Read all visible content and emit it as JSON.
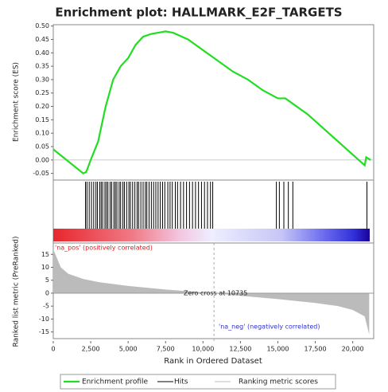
{
  "chart_data": [
    {
      "type": "line",
      "title": "Enrichment plot: HALLMARK_E2F_TARGETS",
      "ylabel": "Enrichment score (ES)",
      "xlim": [
        0,
        21400
      ],
      "ylim": [
        -0.075,
        0.505
      ],
      "yticks": [
        -0.05,
        {
          "value": 0,
          "label": "0.00"
        },
        0.05,
        {
          "value": 0.1,
          "label": "0.10"
        },
        0.15,
        {
          "value": 0.2,
          "label": "0.20"
        },
        0.25,
        {
          "value": 0.3,
          "label": "0.30"
        },
        0.35,
        {
          "value": 0.4,
          "label": "0.40"
        },
        0.45,
        {
          "value": 0.5,
          "label": "0.50"
        }
      ],
      "series": [
        {
          "name": "Enrichment profile",
          "color": "#22dd22",
          "x": [
            0,
            2000,
            2200,
            2500,
            3000,
            3500,
            4000,
            4500,
            5000,
            5500,
            6000,
            6500,
            7000,
            7500,
            8000,
            9000,
            10000,
            11000,
            12000,
            13000,
            14000,
            15000,
            15500,
            16000,
            17000,
            18000,
            19000,
            20000,
            20800,
            20900,
            21200
          ],
          "values": [
            0.04,
            -0.05,
            -0.045,
            0.0,
            0.07,
            0.2,
            0.3,
            0.35,
            0.38,
            0.43,
            0.46,
            0.47,
            0.475,
            0.48,
            0.475,
            0.45,
            0.41,
            0.37,
            0.33,
            0.3,
            0.26,
            0.23,
            0.23,
            0.21,
            0.17,
            0.12,
            0.07,
            0.02,
            -0.02,
            0.01,
            0.0
          ]
        }
      ],
      "hits": {
        "name": "Hits",
        "color": "#000000",
        "x": [
          2150,
          2250,
          2400,
          2550,
          2700,
          2850,
          2950,
          3100,
          3200,
          3300,
          3450,
          3550,
          3650,
          3800,
          3900,
          4050,
          4150,
          4250,
          4400,
          4500,
          4650,
          4750,
          4900,
          5050,
          5150,
          5300,
          5450,
          5600,
          5700,
          5850,
          6000,
          6150,
          6250,
          6400,
          6550,
          6700,
          6850,
          7000,
          7150,
          7300,
          7450,
          7650,
          7800,
          7950,
          8150,
          8300,
          8500,
          8700,
          8900,
          9100,
          9300,
          9500,
          9700,
          9900,
          10100,
          10300,
          10500,
          10650,
          14900,
          15100,
          15400,
          15700,
          16000,
          20950
        ]
      }
    },
    {
      "type": "area",
      "ylabel": "Ranked list metric (PreRanked)",
      "xlabel": "Rank in Ordered Dataset",
      "xlim": [
        0,
        21400
      ],
      "xticks": [
        0,
        {
          "value": 2500,
          "label": "2,500"
        },
        {
          "value": 5000,
          "label": "5,000"
        },
        {
          "value": 7500,
          "label": "7,500"
        },
        {
          "value": 10000,
          "label": "10,000"
        },
        {
          "value": 12500,
          "label": "12,500"
        },
        {
          "value": 15000,
          "label": "15,000"
        },
        {
          "value": 17500,
          "label": "17,500"
        },
        {
          "value": 20000,
          "label": "20,000"
        }
      ],
      "ylim": [
        -18.5,
        19.4
      ],
      "yticks": [
        -15,
        -10,
        -5,
        0,
        5,
        10,
        15
      ],
      "series": [
        {
          "name": "Ranking metric scores",
          "color": "#bbbbbb",
          "x": [
            0,
            500,
            1000,
            2000,
            3000,
            5000,
            7500,
            10000,
            10735,
            12500,
            15000,
            17500,
            19000,
            20000,
            20800,
            21100
          ],
          "values": [
            17,
            10,
            7.5,
            5.5,
            4.3,
            2.8,
            1.4,
            0.3,
            0,
            -1,
            -2.3,
            -3.8,
            -5,
            -6.5,
            -9,
            -16
          ]
        }
      ],
      "zero_cross": {
        "x": 10735,
        "label": "Zero cross at 10735"
      },
      "pos_label": "'na_pos' (positively correlated)",
      "neg_label": "'na_neg' (negatively correlated)"
    }
  ]
}
